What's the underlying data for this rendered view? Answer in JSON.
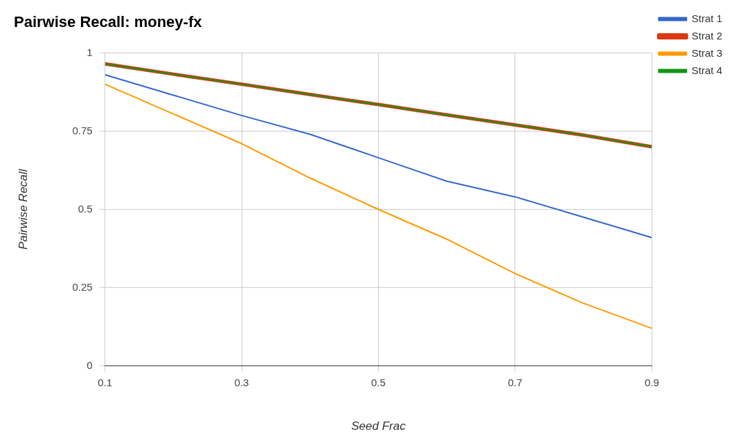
{
  "chart_data": {
    "type": "line",
    "title": "Pairwise Recall: money-fx",
    "xlabel": "Seed Frac",
    "ylabel": "Pairwise Recall",
    "x": [
      0.1,
      0.2,
      0.3,
      0.4,
      0.5,
      0.6,
      0.7,
      0.8,
      0.9
    ],
    "xlim": [
      0.1,
      0.9
    ],
    "xticks": [
      0.1,
      0.3,
      0.5,
      0.7,
      0.9
    ],
    "ylim": [
      0,
      1
    ],
    "yticks": [
      0,
      0.25,
      0.5,
      0.75,
      1
    ],
    "grid": true,
    "legend": "top right",
    "marker": "none",
    "line_style": "solid",
    "series": [
      {
        "name": "Strat 1",
        "color": "#3366cc",
        "values": [
          0.93,
          0.865,
          0.8,
          0.74,
          0.665,
          0.59,
          0.54,
          0.475,
          0.41
        ]
      },
      {
        "name": "Strat 2",
        "color": "#dc3912",
        "values": [
          0.965,
          0.932,
          0.9,
          0.867,
          0.835,
          0.802,
          0.77,
          0.737,
          0.7
        ]
      },
      {
        "name": "Strat 3",
        "color": "#ff9900",
        "values": [
          0.9,
          0.805,
          0.71,
          0.6,
          0.5,
          0.405,
          0.295,
          0.2,
          0.12
        ]
      },
      {
        "name": "Strat 4",
        "color": "#109618",
        "values": [
          0.965,
          0.932,
          0.9,
          0.867,
          0.835,
          0.802,
          0.77,
          0.737,
          0.7
        ]
      }
    ]
  }
}
